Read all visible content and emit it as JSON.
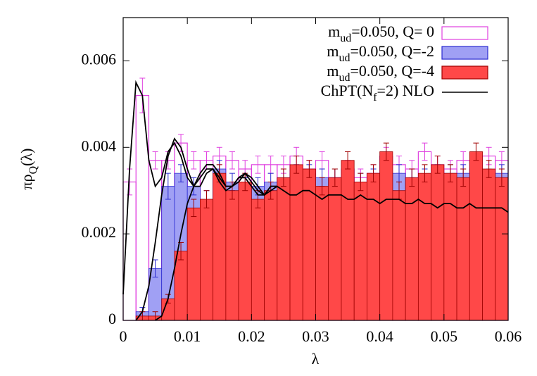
{
  "chart_data": {
    "type": "histogram",
    "xlabel": "λ",
    "ylabel": "πρ_Q(λ)",
    "xlim": [
      0,
      0.06
    ],
    "ylim": [
      0,
      0.007
    ],
    "xticks": [
      0,
      0.01,
      0.02,
      0.03,
      0.04,
      0.05,
      0.06
    ],
    "yticks": [
      0,
      0.002,
      0.004,
      0.006
    ],
    "bins": [
      0,
      0.002,
      0.004,
      0.006,
      0.008,
      0.01,
      0.012,
      0.014,
      0.016,
      0.018,
      0.02,
      0.022,
      0.024,
      0.026,
      0.028,
      0.03,
      0.032,
      0.034,
      0.036,
      0.038,
      0.04,
      0.042,
      0.044,
      0.046,
      0.048,
      0.05,
      0.052,
      0.054,
      0.056,
      0.058,
      0.06
    ],
    "series": [
      {
        "name": "m_ud=0.050, Q= 0",
        "color": "#e040e0",
        "filled": false,
        "values": [
          0.0032,
          0.0052,
          0.0037,
          0.0037,
          0.0041,
          0.0037,
          0.0037,
          0.0038,
          0.0037,
          0.0035,
          0.0036,
          0.0036,
          0.0036,
          0.0038,
          0.0035,
          0.0037,
          0.0033,
          0.0035,
          0.0033,
          0.0034,
          0.0038,
          0.0036,
          0.0035,
          0.0039,
          0.0036,
          0.0035,
          0.0037,
          0.0035,
          0.0038,
          0.0037
        ],
        "errors": [
          0.0003,
          0.0004,
          0.0002,
          0.0002,
          0.0002,
          0.0002,
          0.0002,
          0.0002,
          0.0002,
          0.0002,
          0.0002,
          0.0002,
          0.0002,
          0.0002,
          0.0002,
          0.0002,
          0.0002,
          0.0002,
          0.0002,
          0.0002,
          0.0002,
          0.0002,
          0.0002,
          0.0002,
          0.0002,
          0.0002,
          0.0002,
          0.0002,
          0.0002,
          0.0002
        ]
      },
      {
        "name": "m_ud=0.050, Q=-2",
        "color": "#2a2ad0",
        "fill": "#a0a0f4",
        "filled": true,
        "values": [
          0,
          0.0002,
          0.0012,
          0.0031,
          0.0034,
          0.0031,
          0.0028,
          0.0035,
          0.0032,
          0.0031,
          0.0031,
          0.0032,
          0.0033,
          0.0034,
          0.0034,
          0.0033,
          0.0033,
          0.0032,
          0.0032,
          0.0033,
          0.0034,
          0.0034,
          0.0033,
          0.0033,
          0.0034,
          0.0034,
          0.0034,
          0.0034,
          0.0033,
          0.0034
        ],
        "errors": [
          0,
          0.0001,
          0.0002,
          0.0003,
          0.0002,
          0.0002,
          0.0002,
          0.0002,
          0.0002,
          0.0002,
          0.0002,
          0.0002,
          0.0002,
          0.0002,
          0.0002,
          0.0002,
          0.0002,
          0.0002,
          0.0002,
          0.0002,
          0.0002,
          0.0002,
          0.0002,
          0.0002,
          0.0002,
          0.0002,
          0.0002,
          0.0002,
          0.0002,
          0.0002
        ]
      },
      {
        "name": "m_ud=0.050, Q=-4",
        "color": "#a00000",
        "fill": "#ff4848",
        "filled": true,
        "values": [
          0,
          0.0001,
          0.0001,
          0.0005,
          0.0016,
          0.0026,
          0.0028,
          0.0034,
          0.003,
          0.0032,
          0.0028,
          0.003,
          0.0033,
          0.0036,
          0.0035,
          0.0031,
          0.0033,
          0.0037,
          0.0032,
          0.0034,
          0.0039,
          0.003,
          0.0033,
          0.0034,
          0.0036,
          0.0034,
          0.0033,
          0.0039,
          0.0035,
          0.0033
        ],
        "errors": [
          0,
          0.0001,
          0.0001,
          0.0001,
          0.0002,
          0.0002,
          0.0002,
          0.0002,
          0.0002,
          0.0002,
          0.0002,
          0.0002,
          0.0002,
          0.0002,
          0.0002,
          0.0002,
          0.0002,
          0.0002,
          0.0002,
          0.0002,
          0.0002,
          0.0002,
          0.0002,
          0.0002,
          0.0002,
          0.0002,
          0.0002,
          0.0002,
          0.0002,
          0.0002
        ]
      }
    ],
    "lines": {
      "name": "ChPT(N_f=2) NLO",
      "color": "#000000",
      "curves": [
        {
          "x": [
            0,
            0.001,
            0.002,
            0.003,
            0.004,
            0.005,
            0.006,
            0.007,
            0.008,
            0.009,
            0.01,
            0.011,
            0.012,
            0.013,
            0.014,
            0.015,
            0.016,
            0.017,
            0.018,
            0.019,
            0.02,
            0.021,
            0.022,
            0.023,
            0.024,
            0.025,
            0.026,
            0.027,
            0.028,
            0.029,
            0.03,
            0.031,
            0.032,
            0.033,
            0.034,
            0.035,
            0.036,
            0.037,
            0.038,
            0.039,
            0.04,
            0.041,
            0.042,
            0.043,
            0.044,
            0.045,
            0.046,
            0.047,
            0.048,
            0.049,
            0.05,
            0.051,
            0.052,
            0.053,
            0.054,
            0.055,
            0.056,
            0.057,
            0.058,
            0.059,
            0.06
          ],
          "y": [
            0.0006,
            0.0035,
            0.0055,
            0.0052,
            0.0037,
            0.0031,
            0.0033,
            0.0039,
            0.0041,
            0.0038,
            0.0033,
            0.0031,
            0.0033,
            0.0035,
            0.0035,
            0.0032,
            0.003,
            0.0031,
            0.0033,
            0.0033,
            0.0031,
            0.0029,
            0.0029,
            0.0031,
            0.0031,
            0.003,
            0.0029,
            0.0029,
            0.003,
            0.003,
            0.0029,
            0.0028,
            0.0029,
            0.0029,
            0.0029,
            0.0028,
            0.0028,
            0.0029,
            0.0028,
            0.0028,
            0.0027,
            0.0028,
            0.0028,
            0.0028,
            0.0027,
            0.0027,
            0.0028,
            0.0027,
            0.0027,
            0.0026,
            0.0027,
            0.0027,
            0.0026,
            0.0026,
            0.0027,
            0.0026,
            0.0026,
            0.0026,
            0.0026,
            0.0026,
            0.0025
          ]
        },
        {
          "x": [
            0.002,
            0.003,
            0.004,
            0.005,
            0.006,
            0.007,
            0.008,
            0.009,
            0.01,
            0.011,
            0.012,
            0.013,
            0.014,
            0.015,
            0.016,
            0.017,
            0.018,
            0.019,
            0.02,
            0.021,
            0.022,
            0.023,
            0.024
          ],
          "y": [
            0,
            0.0002,
            0.0008,
            0.0018,
            0.0029,
            0.0038,
            0.0042,
            0.004,
            0.0035,
            0.0031,
            0.0031,
            0.0034,
            0.0035,
            0.0033,
            0.0031,
            0.0031,
            0.0033,
            0.0034,
            0.0032,
            0.003,
            0.0029,
            0.0031,
            0.0031
          ]
        },
        {
          "x": [
            0.005,
            0.006,
            0.007,
            0.008,
            0.009,
            0.01,
            0.011,
            0.012,
            0.013,
            0.014,
            0.015,
            0.016,
            0.017,
            0.018,
            0.019,
            0.02,
            0.021,
            0.022,
            0.023,
            0.024
          ],
          "y": [
            0,
            0.0001,
            0.0005,
            0.0012,
            0.002,
            0.0027,
            0.0031,
            0.0034,
            0.0036,
            0.0036,
            0.0034,
            0.0031,
            0.0031,
            0.0032,
            0.0034,
            0.0033,
            0.0031,
            0.0029,
            0.003,
            0.0031
          ]
        }
      ]
    }
  }
}
